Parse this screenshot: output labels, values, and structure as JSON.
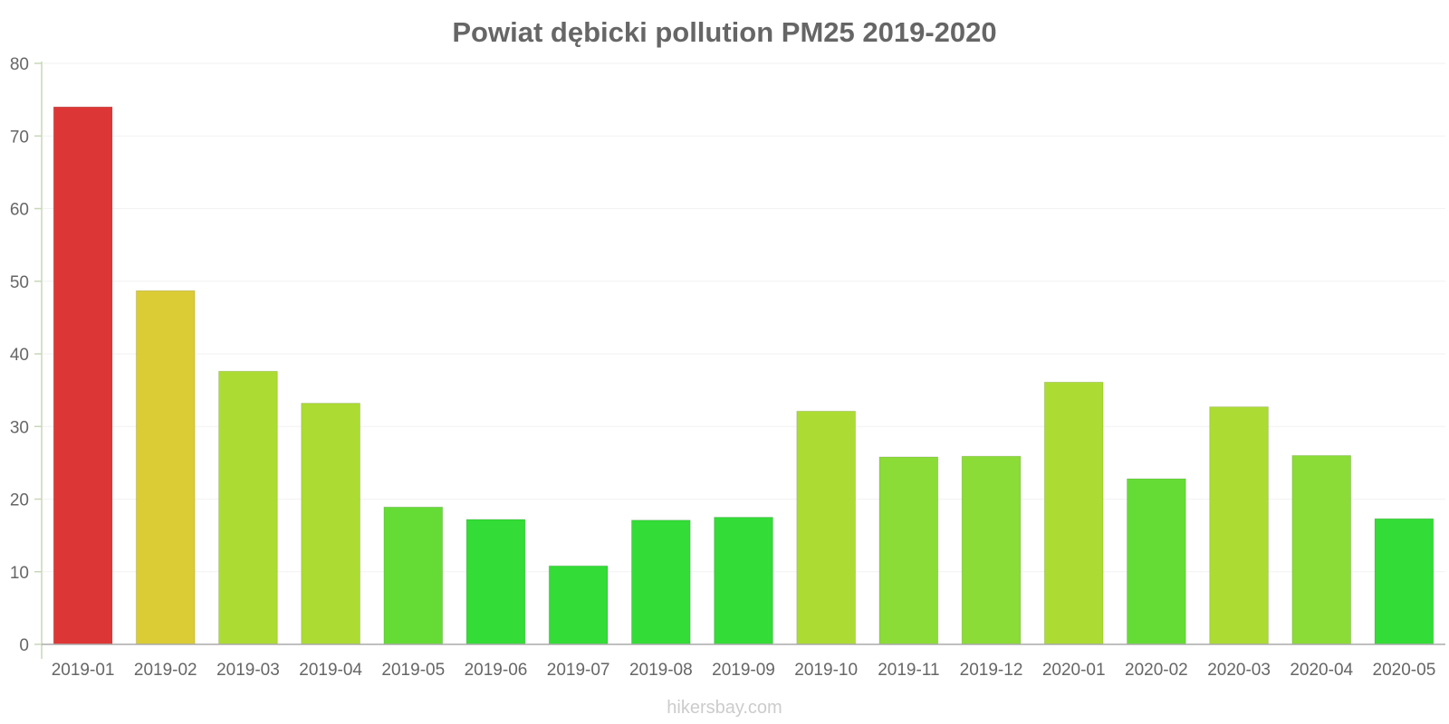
{
  "chart_data": {
    "type": "bar",
    "title": "Powiat dębicki pollution PM25 2019-2020",
    "xlabel": "",
    "ylabel": "",
    "ylim": [
      0,
      80
    ],
    "yticks": [
      0,
      10,
      20,
      30,
      40,
      50,
      60,
      70,
      80
    ],
    "categories": [
      "2019-01",
      "2019-02",
      "2019-03",
      "2019-04",
      "2019-05",
      "2019-06",
      "2019-07",
      "2019-08",
      "2019-09",
      "2019-10",
      "2019-11",
      "2019-12",
      "2020-01",
      "2020-02",
      "2020-03",
      "2020-04",
      "2020-05"
    ],
    "values": [
      74,
      48.7,
      37.6,
      33.2,
      18.9,
      17.2,
      10.8,
      17.1,
      17.5,
      32.1,
      25.8,
      25.9,
      36.1,
      22.8,
      32.7,
      26.0,
      17.3
    ],
    "colors": [
      "#dd3636",
      "#dbcc36",
      "#acdc33",
      "#acdc33",
      "#65dc36",
      "#33dc36",
      "#33dc36",
      "#33dc36",
      "#33dc36",
      "#acdc33",
      "#8bdc36",
      "#8bdc36",
      "#acdc33",
      "#65dc36",
      "#acdc33",
      "#8bdc36",
      "#33dc36"
    ]
  },
  "watermark": "hikersbay.com"
}
